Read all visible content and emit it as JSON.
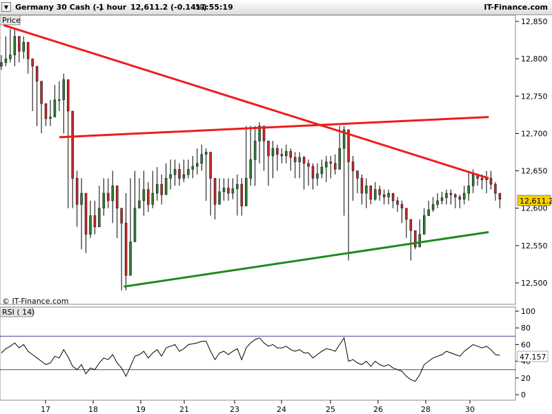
{
  "header": {
    "instrument": "Germany 30 Cash (-)",
    "interval": "1 hour",
    "quote": "12,611.2 (-0.14%)",
    "time": "11:55:19",
    "brand": "IT-Finance.com"
  },
  "price_panel": {
    "label": "Price",
    "watermark": "© IT-Finance.com",
    "last_price": "12,611.2"
  },
  "rsi_panel": {
    "label": "RSI ( 14)",
    "last_value": "47.157"
  },
  "colors": {
    "candle_up": "#2e7d32",
    "candle_down": "#c62828",
    "resistance": "#ee1c1c",
    "support": "#1e8a1e",
    "rsi_line": "#000000",
    "rsi_bands": "#4040a0",
    "last_price_bg": "#f5d000",
    "border": "#888888"
  },
  "icons": {
    "dropdown": "chevron-down-icon"
  },
  "chart_data": [
    {
      "type": "candlestick",
      "title": "Germany 30 Cash (-) 1 hour",
      "x_tick_labels": [
        "17",
        "18",
        "19",
        "21",
        "23",
        "24",
        "25",
        "26",
        "28",
        "30"
      ],
      "ylim": [
        12480,
        12860
      ],
      "y_tick_labels": [
        "12,850",
        "12,800",
        "12,750",
        "12,700",
        "12,650",
        "12,600",
        "12,550",
        "12,500"
      ],
      "y_ticks": [
        12850,
        12800,
        12750,
        12700,
        12650,
        12600,
        12550,
        12500
      ],
      "grid": false,
      "close": [
        12795,
        12800,
        12805,
        12830,
        12810,
        12822,
        12800,
        12790,
        12770,
        12740,
        12720,
        12722,
        12745,
        12745,
        12772,
        12730,
        12640,
        12605,
        12620,
        12565,
        12590,
        12575,
        12600,
        12620,
        12610,
        12630,
        12600,
        12580,
        12510,
        12555,
        12600,
        12610,
        12625,
        12605,
        12620,
        12632,
        12618,
        12640,
        12645,
        12652,
        12640,
        12645,
        12652,
        12656,
        12660,
        12672,
        12675,
        12640,
        12605,
        12622,
        12627,
        12620,
        12626,
        12632,
        12603,
        12640,
        12665,
        12690,
        12710,
        12690,
        12670,
        12680,
        12672,
        12670,
        12676,
        12668,
        12662,
        12668,
        12660,
        12656,
        12640,
        12646,
        12655,
        12662,
        12660,
        12652,
        12680,
        12705,
        12662,
        12650,
        12640,
        12620,
        12630,
        12612,
        12625,
        12618,
        12615,
        12620,
        12610,
        12605,
        12600,
        12585,
        12570,
        12548,
        12565,
        12590,
        12598,
        12605,
        12610,
        12614,
        12620,
        12618,
        12615,
        12612,
        12620,
        12630,
        12645,
        12640,
        12638,
        12640,
        12632,
        12620,
        12612
      ],
      "high": [
        12805,
        12830,
        12840,
        12840,
        12830,
        12830,
        12810,
        12800,
        12790,
        12770,
        12740,
        12745,
        12765,
        12770,
        12780,
        12770,
        12690,
        12650,
        12640,
        12600,
        12610,
        12610,
        12630,
        12640,
        12640,
        12650,
        12630,
        12600,
        12620,
        12640,
        12650,
        12640,
        12650,
        12635,
        12650,
        12655,
        12645,
        12660,
        12665,
        12665,
        12660,
        12665,
        12665,
        12670,
        12680,
        12685,
        12680,
        12660,
        12635,
        12640,
        12640,
        12640,
        12640,
        12645,
        12640,
        12710,
        12710,
        12710,
        12715,
        12700,
        12690,
        12690,
        12685,
        12680,
        12685,
        12680,
        12675,
        12675,
        12670,
        12665,
        12660,
        12660,
        12665,
        12670,
        12670,
        12672,
        12710,
        12710,
        12690,
        12670,
        12650,
        12645,
        12640,
        12630,
        12635,
        12630,
        12625,
        12625,
        12620,
        12615,
        12610,
        12600,
        12580,
        12570,
        12585,
        12600,
        12610,
        12615,
        12620,
        12622,
        12625,
        12625,
        12620,
        12618,
        12630,
        12650,
        12652,
        12645,
        12645,
        12650,
        12650,
        12635,
        12620
      ],
      "low": [
        12785,
        12790,
        12795,
        12790,
        12795,
        12800,
        12780,
        12730,
        12710,
        12700,
        12710,
        12710,
        12730,
        12730,
        12700,
        12600,
        12600,
        12575,
        12545,
        12540,
        12560,
        12565,
        12580,
        12590,
        12600,
        12580,
        12560,
        12490,
        12490,
        12550,
        12580,
        12600,
        12590,
        12595,
        12600,
        12610,
        12605,
        12620,
        12625,
        12630,
        12630,
        12635,
        12640,
        12640,
        12645,
        12650,
        12610,
        12590,
        12585,
        12605,
        12610,
        12610,
        12612,
        12590,
        12590,
        12605,
        12630,
        12630,
        12660,
        12650,
        12630,
        12640,
        12650,
        12660,
        12660,
        12650,
        12640,
        12640,
        12625,
        12630,
        12625,
        12630,
        12640,
        12635,
        12640,
        12645,
        12660,
        12590,
        12530,
        12610,
        12620,
        12605,
        12600,
        12605,
        12610,
        12610,
        12605,
        12605,
        12600,
        12595,
        12580,
        12560,
        12530,
        12545,
        12560,
        12580,
        12590,
        12595,
        12600,
        12605,
        12605,
        12605,
        12600,
        12600,
        12605,
        12610,
        12620,
        12630,
        12625,
        12620,
        12625,
        12610,
        12600
      ],
      "trendlines": [
        {
          "x": [
            0.5,
            109.5
          ],
          "y": [
            12845,
            12640
          ],
          "role": "resistance"
        },
        {
          "x": [
            13,
            109.5
          ],
          "y": [
            12695,
            12722
          ],
          "role": "resistance"
        },
        {
          "x": [
            27.5,
            109.5
          ],
          "y": [
            12495,
            12568
          ],
          "role": "support"
        }
      ]
    },
    {
      "type": "line",
      "title": "RSI ( 14)",
      "ylim": [
        -5,
        110
      ],
      "y_tick_labels": [
        "100",
        "80",
        "60",
        "40",
        "20",
        "0"
      ],
      "y_ticks": [
        100,
        80,
        60,
        40,
        20,
        0
      ],
      "hlines": [
        70,
        30
      ],
      "values": [
        50,
        55,
        58,
        62,
        56,
        60,
        52,
        48,
        44,
        40,
        36,
        38,
        46,
        44,
        54,
        45,
        34,
        30,
        36,
        25,
        32,
        30,
        38,
        44,
        42,
        48,
        38,
        32,
        22,
        34,
        46,
        48,
        52,
        44,
        50,
        54,
        46,
        56,
        58,
        60,
        52,
        55,
        60,
        61,
        62,
        64,
        64,
        52,
        42,
        50,
        52,
        48,
        52,
        55,
        42,
        56,
        62,
        66,
        68,
        62,
        58,
        60,
        56,
        56,
        58,
        54,
        52,
        54,
        50,
        50,
        44,
        48,
        52,
        55,
        54,
        52,
        60,
        68,
        40,
        42,
        38,
        36,
        40,
        34,
        40,
        36,
        34,
        36,
        32,
        30,
        28,
        22,
        18,
        16,
        24,
        36,
        40,
        44,
        46,
        48,
        52,
        50,
        48,
        46,
        52,
        56,
        60,
        58,
        56,
        58,
        54,
        48,
        47.157
      ]
    }
  ]
}
